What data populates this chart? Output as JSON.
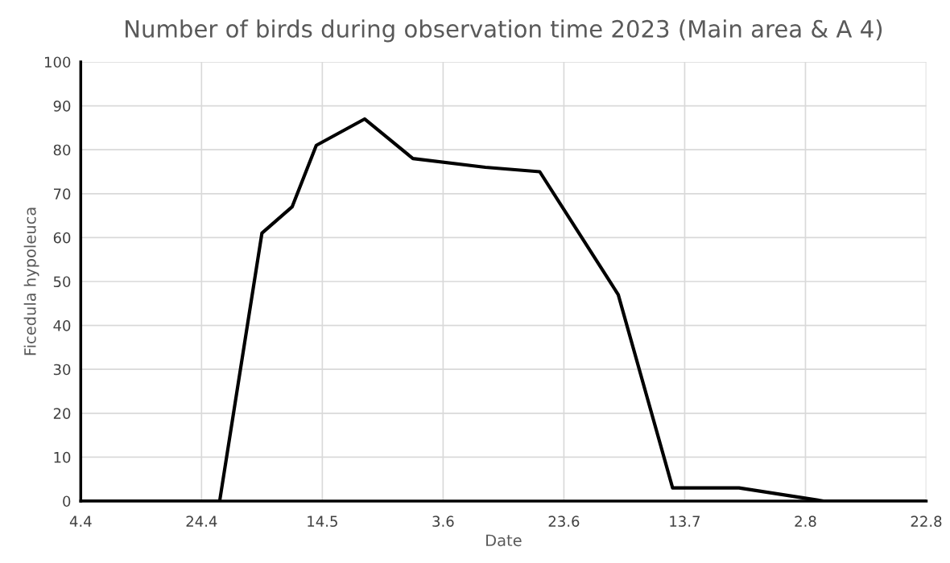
{
  "chart_data": {
    "type": "line",
    "title": "Number of birds during observation time 2023 (Main area & A 4)",
    "xlabel": "Date",
    "ylabel": "Ficedula hypoleuca",
    "x": [
      "2023-04-04",
      "2023-04-27",
      "2023-05-04",
      "2023-05-09",
      "2023-05-13",
      "2023-05-21",
      "2023-05-29",
      "2023-06-10",
      "2023-06-19",
      "2023-07-02",
      "2023-07-11",
      "2023-07-22",
      "2023-08-05",
      "2023-08-22"
    ],
    "series": [
      {
        "color": "#000000",
        "values": [
          0,
          0,
          61,
          67,
          81,
          87,
          78,
          76,
          75,
          47,
          3,
          3,
          0,
          0
        ]
      }
    ],
    "xlim": [
      "2023-04-04",
      "2023-08-22"
    ],
    "xticks": [
      {
        "value": "2023-04-04",
        "label": "4.4"
      },
      {
        "value": "2023-04-24",
        "label": "24.4"
      },
      {
        "value": "2023-05-14",
        "label": "14.5"
      },
      {
        "value": "2023-06-03",
        "label": "3.6"
      },
      {
        "value": "2023-06-23",
        "label": "23.6"
      },
      {
        "value": "2023-07-13",
        "label": "13.7"
      },
      {
        "value": "2023-08-02",
        "label": "2.8"
      },
      {
        "value": "2023-08-22",
        "label": "22.8"
      }
    ],
    "ylim": [
      0,
      100
    ],
    "yticks": [
      0,
      10,
      20,
      30,
      40,
      50,
      60,
      70,
      80,
      90,
      100
    ],
    "grid": true,
    "marker": "none",
    "line_style": "solid"
  }
}
